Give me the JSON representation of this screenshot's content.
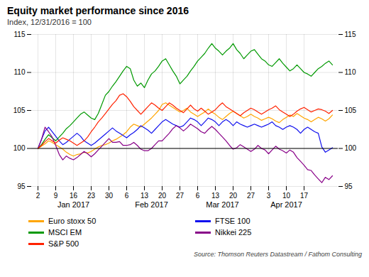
{
  "chart_data": {
    "type": "line",
    "title": "Equity market performance since 2016",
    "subtitle": "Index, 12/31/2016 = 100",
    "source": "Source: Thomson Reuters Datastream / Fathom Consulting",
    "categories": [
      "2",
      null,
      null,
      null,
      null,
      "9",
      null,
      null,
      null,
      null,
      "16",
      null,
      null,
      null,
      null,
      "23",
      null,
      null,
      null,
      null,
      "30",
      null,
      null,
      null,
      null,
      "6",
      null,
      null,
      null,
      null,
      "13",
      null,
      null,
      null,
      null,
      "20",
      null,
      null,
      null,
      null,
      "27",
      null,
      null,
      null,
      null,
      "6",
      null,
      null,
      null,
      null,
      "13",
      null,
      null,
      null,
      null,
      "20",
      null,
      null,
      null,
      null,
      "27",
      null,
      null,
      null,
      null,
      "3",
      null,
      null,
      null,
      null,
      "10",
      null,
      null,
      null,
      null,
      "17",
      null,
      null,
      null,
      null,
      null,
      null,
      null,
      null
    ],
    "annotations": [
      {
        "text": "Jan 2017",
        "x": 10
      },
      {
        "text": "Feb 2017",
        "x": 32
      },
      {
        "text": "Mar 2017",
        "x": 52
      },
      {
        "text": "Apr 2017",
        "x": 70
      }
    ],
    "reference_line": 100,
    "ylim": [
      95,
      115
    ],
    "yticks": [
      95,
      100,
      105,
      110,
      115
    ],
    "grid": true,
    "legend": "bottom",
    "series": [
      {
        "name": "Euro stoxx 50",
        "color": "#FFA500",
        "values": [
          100.0,
          100.3,
          100.6,
          101.0,
          100.8,
          100.5,
          100.2,
          99.9,
          99.5,
          99.2,
          99.0,
          99.2,
          99.3,
          99.5,
          99.4,
          99.6,
          99.9,
          100.2,
          100.4,
          100.5,
          100.7,
          101.0,
          101.2,
          101.5,
          101.8,
          102.2,
          102.8,
          103.2,
          103.0,
          102.8,
          103.2,
          103.6,
          104.0,
          104.5,
          105.0,
          105.8,
          106.0,
          105.7,
          105.4,
          105.1,
          104.8,
          105.0,
          105.3,
          104.8,
          104.5,
          104.2,
          104.5,
          104.8,
          105.2,
          104.8,
          104.5,
          104.1,
          103.8,
          104.2,
          104.6,
          104.9,
          104.6,
          104.3,
          104.0,
          104.2,
          104.5,
          104.2,
          104.0,
          103.7,
          103.9,
          104.1,
          103.9,
          103.6,
          103.4,
          103.8,
          104.1,
          104.4,
          104.2,
          104.6,
          104.3,
          104.0,
          103.8,
          103.5,
          103.8,
          104.1,
          103.9,
          103.6,
          103.9,
          104.4
        ]
      },
      {
        "name": "FTSE 100",
        "color": "#1111EE",
        "values": [
          100.0,
          101.2,
          102.3,
          102.8,
          102.2,
          101.6,
          101.0,
          100.5,
          100.8,
          101.2,
          101.6,
          102.0,
          101.6,
          101.0,
          100.7,
          100.4,
          100.7,
          101.1,
          101.5,
          101.9,
          102.3,
          102.7,
          102.3,
          102.0,
          101.7,
          101.4,
          101.8,
          102.1,
          102.5,
          103.0,
          102.7,
          102.4,
          102.0,
          102.5,
          103.0,
          103.5,
          103.8,
          103.5,
          103.2,
          103.0,
          102.8,
          103.0,
          103.5,
          104.0,
          103.8,
          103.5,
          103.0,
          103.5,
          104.0,
          103.8,
          103.5,
          103.0,
          103.5,
          103.8,
          103.5,
          103.0,
          103.5,
          103.2,
          103.0,
          102.8,
          103.0,
          103.2,
          103.0,
          102.8,
          103.0,
          103.2,
          103.5,
          103.0,
          102.8,
          102.5,
          102.8,
          103.0,
          102.8,
          102.5,
          102.0,
          102.5,
          102.8,
          102.5,
          102.2,
          102.0,
          100.2,
          99.5,
          99.8,
          100.1
        ]
      },
      {
        "name": "MSCI EM",
        "color": "#009900",
        "values": [
          100.0,
          100.5,
          101.2,
          101.8,
          101.4,
          101.0,
          101.5,
          102.0,
          102.6,
          103.0,
          103.5,
          104.0,
          104.5,
          104.8,
          104.4,
          104.0,
          103.8,
          104.6,
          105.8,
          107.0,
          107.5,
          108.2,
          108.8,
          109.5,
          110.2,
          110.8,
          110.5,
          109.0,
          108.2,
          108.6,
          108.0,
          109.0,
          109.8,
          110.2,
          110.8,
          111.5,
          111.8,
          111.0,
          110.2,
          109.5,
          108.5,
          109.0,
          109.5,
          110.2,
          110.8,
          111.5,
          112.0,
          112.5,
          113.2,
          113.8,
          113.2,
          112.8,
          112.3,
          112.8,
          113.2,
          113.8,
          113.0,
          112.5,
          111.8,
          112.3,
          112.8,
          113.0,
          112.4,
          111.8,
          111.5,
          111.0,
          110.8,
          111.3,
          111.8,
          111.2,
          110.7,
          110.2,
          110.5,
          111.0,
          110.5,
          110.0,
          109.8,
          109.5,
          110.0,
          110.5,
          110.8,
          111.2,
          111.5,
          111.0
        ]
      },
      {
        "name": "Nikkei 225",
        "color": "#880088",
        "values": [
          100.0,
          101.2,
          102.8,
          102.2,
          101.5,
          100.4,
          99.2,
          98.5,
          99.0,
          98.7,
          98.5,
          98.8,
          99.2,
          99.6,
          99.3,
          98.9,
          99.3,
          99.8,
          100.3,
          100.8,
          101.3,
          100.8,
          100.8,
          100.9,
          100.4,
          100.4,
          100.5,
          100.8,
          100.4,
          99.9,
          99.7,
          99.7,
          100.0,
          100.5,
          101.0,
          101.0,
          101.5,
          102.0,
          102.6,
          103.0,
          102.7,
          102.3,
          102.7,
          103.2,
          102.9,
          102.6,
          102.2,
          102.0,
          102.5,
          102.9,
          102.5,
          102.0,
          101.5,
          101.0,
          100.4,
          99.9,
          100.1,
          100.5,
          100.2,
          99.9,
          99.6,
          99.9,
          100.4,
          100.0,
          99.8,
          99.3,
          99.8,
          100.3,
          99.9,
          99.7,
          99.4,
          99.8,
          99.5,
          98.8,
          98.3,
          97.8,
          97.2,
          97.1,
          96.5,
          96.0,
          95.5,
          96.2,
          95.9,
          96.4
        ]
      },
      {
        "name": "S&P 500",
        "color": "#FF2200",
        "values": [
          100.0,
          100.4,
          100.9,
          101.3,
          101.0,
          100.7,
          101.1,
          101.4,
          101.2,
          101.0,
          100.7,
          100.4,
          100.7,
          101.0,
          101.5,
          102.2,
          102.8,
          103.5,
          104.0,
          104.6,
          105.2,
          105.8,
          106.3,
          107.0,
          107.2,
          106.8,
          106.2,
          105.5,
          105.0,
          104.5,
          105.0,
          105.5,
          106.0,
          105.7,
          105.3,
          105.0,
          105.5,
          106.0,
          105.7,
          105.3,
          105.0,
          104.7,
          105.2,
          105.7,
          105.2,
          104.9,
          105.3,
          104.9,
          104.5,
          104.8,
          105.1,
          105.6,
          106.0,
          105.5,
          105.2,
          104.9,
          104.6,
          104.3,
          104.7,
          105.0,
          105.3,
          105.1,
          104.8,
          104.5,
          104.8,
          105.1,
          105.3,
          105.6,
          105.1,
          104.8,
          104.5,
          104.2,
          104.5,
          104.9,
          105.2,
          105.4,
          105.1,
          104.8,
          105.0,
          105.2,
          105.1,
          104.9,
          104.6,
          105.0
        ]
      }
    ]
  }
}
